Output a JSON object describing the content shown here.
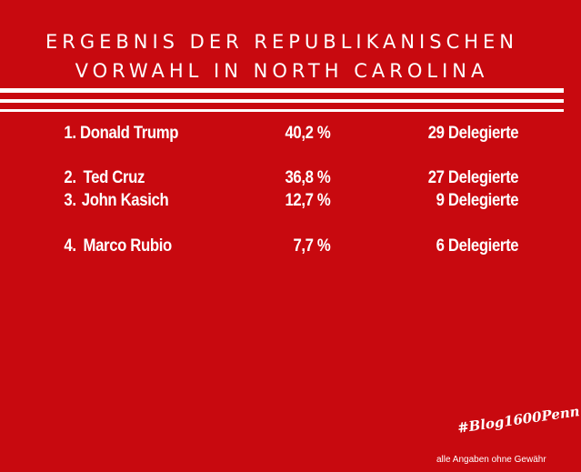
{
  "title": {
    "line1": "ERGEBNIS DER REPUBLIKANISCHEN",
    "line2": "VORWAHL IN NORTH CAROLINA"
  },
  "results": [
    {
      "rank": "1.",
      "name": "Donald Trump",
      "percent": "40,2 %",
      "delegates": "29 Delegierte"
    },
    {
      "rank": "2.",
      "name": "Ted Cruz",
      "percent": "36,8 %",
      "delegates": "27 Delegierte"
    },
    {
      "rank": "3.",
      "name": "John Kasich",
      "percent": "12,7 %",
      "delegates": "9 Delegierte"
    },
    {
      "rank": "4.",
      "name": "Marco Rubio",
      "percent": "7,7 %",
      "delegates": "6 Delegierte"
    }
  ],
  "hashtag": "#Blog1600Penn",
  "footnote": "alle Angaben ohne Gewähr",
  "colors": {
    "background": "#c8090f",
    "text": "#ffffff"
  }
}
